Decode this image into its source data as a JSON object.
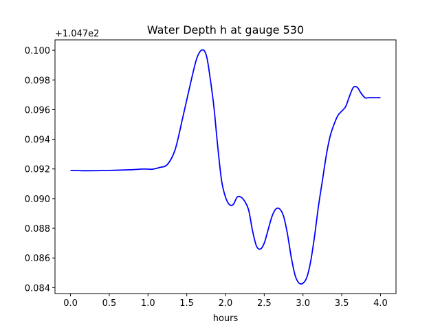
{
  "chart_data": {
    "type": "line",
    "title": "Water Depth h at gauge 530",
    "xlabel": "hours",
    "ylabel": "",
    "offset_label": "+1.047e2",
    "xlim": [
      -0.2,
      4.2
    ],
    "ylim": [
      0.0836,
      0.1007
    ],
    "x_ticks": [
      0.0,
      0.5,
      1.0,
      1.5,
      2.0,
      2.5,
      3.0,
      3.5,
      4.0
    ],
    "x_tick_labels": [
      "0.0",
      "0.5",
      "1.0",
      "1.5",
      "2.0",
      "2.5",
      "3.0",
      "3.5",
      "4.0"
    ],
    "y_ticks": [
      0.084,
      0.086,
      0.088,
      0.09,
      0.092,
      0.094,
      0.096,
      0.098,
      0.1
    ],
    "y_tick_labels": [
      "0.084",
      "0.086",
      "0.088",
      "0.090",
      "0.092",
      "0.094",
      "0.096",
      "0.098",
      "0.100"
    ],
    "grid": false,
    "legend": "none",
    "series": [
      {
        "color": "#0000ff",
        "x": [
          0.0,
          0.2,
          0.5,
          0.8,
          0.95,
          1.05,
          1.15,
          1.25,
          1.35,
          1.45,
          1.55,
          1.62,
          1.67,
          1.72,
          1.76,
          1.8,
          1.85,
          1.9,
          1.95,
          2.0,
          2.05,
          2.1,
          2.15,
          2.2,
          2.25,
          2.3,
          2.35,
          2.4,
          2.45,
          2.5,
          2.55,
          2.6,
          2.65,
          2.7,
          2.75,
          2.8,
          2.85,
          2.9,
          2.95,
          3.0,
          3.05,
          3.1,
          3.15,
          3.2,
          3.25,
          3.3,
          3.35,
          3.4,
          3.45,
          3.5,
          3.55,
          3.6,
          3.65,
          3.7,
          3.75,
          3.8,
          3.85,
          3.9,
          3.95,
          4.0
        ],
        "y": [
          0.0919,
          0.09188,
          0.0919,
          0.09195,
          0.092,
          0.09198,
          0.0921,
          0.0923,
          0.0933,
          0.0955,
          0.0978,
          0.0993,
          0.0999,
          0.1,
          0.0995,
          0.0982,
          0.0962,
          0.0935,
          0.0912,
          0.0901,
          0.0896,
          0.0896,
          0.0901,
          0.0901,
          0.0898,
          0.0892,
          0.0878,
          0.0868,
          0.0866,
          0.087,
          0.0879,
          0.0888,
          0.0893,
          0.0893,
          0.0888,
          0.0876,
          0.086,
          0.0848,
          0.0843,
          0.0843,
          0.0847,
          0.0858,
          0.0875,
          0.0895,
          0.0912,
          0.0929,
          0.0942,
          0.095,
          0.0956,
          0.0959,
          0.0962,
          0.0969,
          0.0975,
          0.0975,
          0.0971,
          0.0968,
          0.0968,
          0.0968,
          0.0968,
          0.0968
        ]
      }
    ]
  }
}
